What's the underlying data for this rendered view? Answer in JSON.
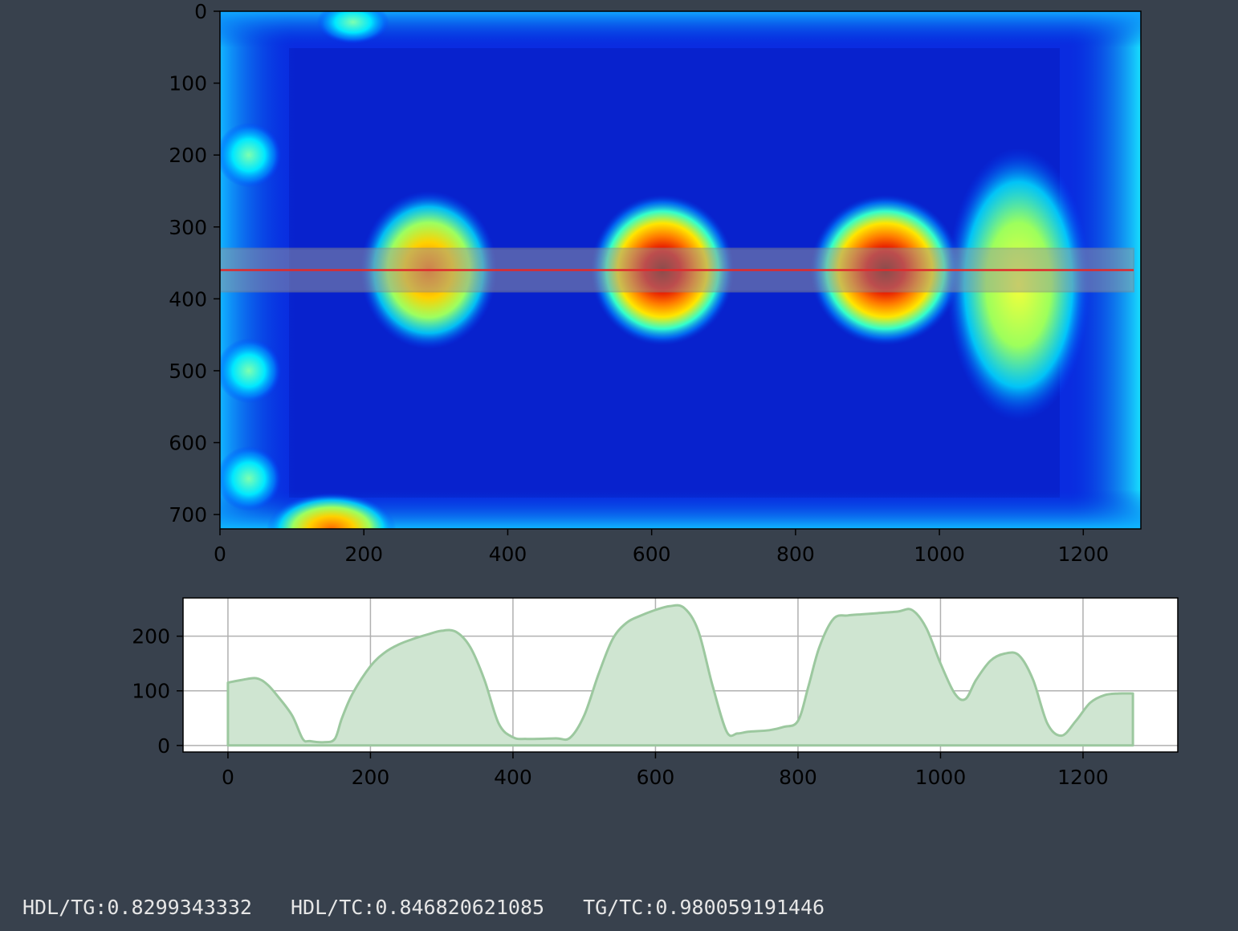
{
  "colors": {
    "background": "#38414d",
    "profile_line": "#e02a2a",
    "band": "#9a9a9a",
    "profile_fill": "#cfe5d1",
    "profile_stroke": "#9cc89f",
    "grid": "#b0b0b0",
    "tick_text": "#000000",
    "status_text": "#e6e6e6"
  },
  "chart_data": [
    {
      "type": "heatmap",
      "colormap": "jet",
      "xlim": [
        0,
        1280
      ],
      "ylim": [
        720,
        0
      ],
      "x_ticks": [
        0,
        200,
        400,
        600,
        800,
        1000,
        1200
      ],
      "y_ticks": [
        0,
        100,
        200,
        300,
        400,
        500,
        600,
        700
      ],
      "grid": false,
      "background_level": 0.12,
      "hotspots": [
        {
          "x": 290,
          "y": 360,
          "rx": 95,
          "ry": 110,
          "level": 0.82
        },
        {
          "x": 615,
          "y": 360,
          "rx": 100,
          "ry": 105,
          "level": 0.98
        },
        {
          "x": 925,
          "y": 360,
          "rx": 105,
          "ry": 105,
          "level": 0.95
        },
        {
          "x": 1110,
          "y": 380,
          "rx": 100,
          "ry": 190,
          "level": 0.6
        },
        {
          "x": 155,
          "y": 720,
          "rx": 90,
          "ry": 50,
          "level": 0.75
        },
        {
          "x": 185,
          "y": 15,
          "rx": 50,
          "ry": 30,
          "level": 0.4
        },
        {
          "x": 40,
          "y": 200,
          "rx": 45,
          "ry": 45,
          "level": 0.45
        },
        {
          "x": 40,
          "y": 500,
          "rx": 45,
          "ry": 45,
          "level": 0.45
        },
        {
          "x": 40,
          "y": 650,
          "rx": 45,
          "ry": 45,
          "level": 0.4
        }
      ],
      "band": {
        "y_start": 330,
        "y_end": 390,
        "x_start": 0,
        "x_end": 1270
      },
      "profile_line_y": 360
    },
    {
      "type": "area",
      "xlim": [
        -63,
        1333
      ],
      "ylim": [
        -12,
        270
      ],
      "x_ticks": [
        0,
        200,
        400,
        600,
        800,
        1000,
        1200
      ],
      "y_ticks": [
        0,
        100,
        200
      ],
      "grid": true,
      "x": [
        0,
        20,
        40,
        55,
        70,
        90,
        105,
        115,
        135,
        150,
        160,
        175,
        200,
        220,
        240,
        260,
        280,
        300,
        320,
        340,
        360,
        380,
        400,
        420,
        460,
        480,
        500,
        520,
        540,
        560,
        580,
        600,
        620,
        640,
        660,
        680,
        700,
        715,
        730,
        760,
        780,
        800,
        815,
        830,
        850,
        870,
        890,
        910,
        940,
        960,
        980,
        1000,
        1020,
        1035,
        1050,
        1070,
        1090,
        1110,
        1130,
        1150,
        1170,
        1190,
        1210,
        1230,
        1250,
        1270
      ],
      "values": [
        115,
        120,
        123,
        112,
        90,
        55,
        12,
        8,
        6,
        12,
        50,
        95,
        145,
        170,
        185,
        195,
        203,
        210,
        208,
        180,
        120,
        40,
        15,
        12,
        13,
        14,
        55,
        130,
        195,
        225,
        238,
        248,
        255,
        252,
        210,
        110,
        25,
        22,
        25,
        28,
        34,
        45,
        110,
        180,
        232,
        238,
        240,
        242,
        245,
        248,
        215,
        150,
        95,
        85,
        120,
        155,
        168,
        165,
        120,
        40,
        18,
        45,
        78,
        92,
        95,
        95
      ]
    }
  ],
  "status": {
    "hdl_tg": "HDL/TG:0.8299343332",
    "hdl_tc": "HDL/TC:0.846820621085",
    "tg_tc": "TG/TC:0.980059191446"
  }
}
